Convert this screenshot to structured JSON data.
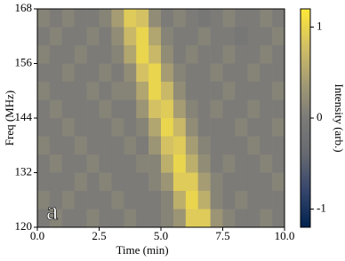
{
  "chart_data": {
    "type": "heatmap",
    "xlabel": "Time (min)",
    "ylabel": "Freq (MHz)",
    "colorbar_label": "Intensity (arb.)",
    "annotation": "a",
    "xlim": [
      0,
      10
    ],
    "ylim": [
      120,
      168
    ],
    "xticks": [
      {
        "value": 0,
        "label": "0.0"
      },
      {
        "value": 2.5,
        "label": "2.5"
      },
      {
        "value": 5,
        "label": "5.0"
      },
      {
        "value": 7.5,
        "label": "7.5"
      },
      {
        "value": 10,
        "label": "10.0"
      }
    ],
    "yticks": [
      120,
      132,
      144,
      156,
      168
    ],
    "clim": [
      -1.2,
      1.2
    ],
    "cticks": [
      -1,
      0,
      1
    ],
    "colormap": [
      "#00224e",
      "#35456c",
      "#666970",
      "#7c7b78",
      "#a59c74",
      "#d3c164",
      "#fee838"
    ],
    "xbins": [
      0,
      0.5,
      1,
      1.5,
      2,
      2.5,
      3,
      3.5,
      4,
      4.5,
      5,
      5.5,
      6,
      6.5,
      7,
      7.5,
      8,
      8.5,
      9,
      9.5,
      10
    ],
    "ybins": [
      168,
      164,
      160,
      156,
      152,
      148,
      144,
      140,
      136,
      132,
      128,
      124,
      120
    ],
    "values": [
      [
        0.1,
        0,
        0.1,
        0,
        0,
        0.1,
        0.4,
        0.9,
        0.8,
        0.2,
        0,
        0.1,
        0,
        -0.1,
        0,
        0.1,
        0,
        0,
        0.1,
        0
      ],
      [
        0,
        0.1,
        0,
        0,
        0.1,
        0,
        0.2,
        0.7,
        1,
        0.5,
        0.1,
        0,
        0,
        0.1,
        0,
        0,
        -0.1,
        0,
        0,
        0.1
      ],
      [
        0.1,
        0,
        0,
        0.1,
        0,
        0,
        0.1,
        0.5,
        1,
        0.7,
        0.2,
        0,
        0.1,
        0,
        0,
        0.1,
        0,
        0,
        0.1,
        0
      ],
      [
        0,
        0,
        0.1,
        0,
        0,
        0.1,
        0,
        0.2,
        0.8,
        1,
        0.4,
        0.1,
        0,
        0,
        0.1,
        0,
        0,
        0.1,
        0,
        0
      ],
      [
        0.1,
        0,
        0,
        0,
        0.1,
        0,
        0.1,
        0.1,
        0.5,
        1,
        0.7,
        0.2,
        0,
        0,
        0,
        0.1,
        0,
        0,
        0,
        0.1
      ],
      [
        0,
        0.1,
        0,
        0,
        0,
        0.1,
        0,
        0,
        0.3,
        0.8,
        0.9,
        0.4,
        0.1,
        0,
        0.1,
        0,
        0,
        0.1,
        0,
        0
      ],
      [
        0,
        0,
        0.1,
        0,
        0,
        0,
        0.1,
        0,
        0.1,
        0.5,
        1,
        0.7,
        0.2,
        0,
        0,
        0,
        0.1,
        0,
        0,
        0.1
      ],
      [
        0.1,
        0,
        0,
        0.1,
        0,
        0,
        0,
        0.1,
        0,
        0.3,
        0.8,
        0.9,
        0.4,
        0.1,
        0,
        0,
        0,
        0.1,
        0,
        0
      ],
      [
        0,
        0.1,
        0,
        0,
        0.1,
        0,
        0,
        0,
        0.1,
        0.1,
        0.6,
        1,
        0.6,
        0.2,
        0,
        0.1,
        0,
        0,
        0.1,
        0
      ],
      [
        0,
        0,
        0,
        0.1,
        0,
        0.1,
        0,
        0,
        0,
        0.1,
        0.3,
        0.9,
        0.9,
        0.4,
        0.1,
        0,
        0,
        0,
        0,
        0.1
      ],
      [
        0.1,
        0,
        0.1,
        0,
        0,
        0,
        0.1,
        0,
        0,
        0,
        0.1,
        0.6,
        1,
        0.6,
        0.1,
        0,
        0.1,
        0,
        0,
        0
      ],
      [
        0,
        0.1,
        0,
        0,
        0.1,
        0,
        0,
        0.1,
        0,
        0,
        0.1,
        0.3,
        0.9,
        0.9,
        0.3,
        0.1,
        0,
        0,
        0.1,
        0
      ]
    ]
  }
}
